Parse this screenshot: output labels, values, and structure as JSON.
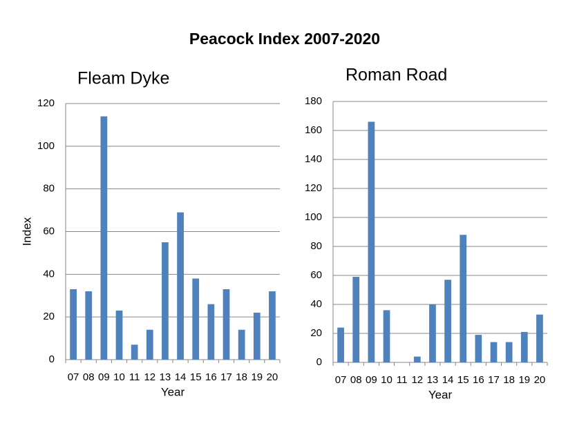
{
  "title": "Peacock Index 2007-2020",
  "chart_data": [
    {
      "type": "bar",
      "title": "Fleam Dyke",
      "x_label": "Year",
      "y_label": "Index",
      "categories": [
        "07",
        "08",
        "09",
        "10",
        "11",
        "12",
        "13",
        "14",
        "15",
        "16",
        "17",
        "18",
        "19",
        "20"
      ],
      "values": [
        33,
        32,
        114,
        23,
        7,
        14,
        55,
        69,
        38,
        26,
        33,
        14,
        22,
        32
      ],
      "color": "#4f81bd",
      "ylim": [
        0,
        120
      ],
      "yticks": [
        0,
        20,
        40,
        60,
        80,
        100,
        120
      ],
      "grid": true
    },
    {
      "type": "bar",
      "title": "Roman Road",
      "x_label": "Year",
      "categories": [
        "07",
        "08",
        "09",
        "10",
        "11",
        "12",
        "13",
        "14",
        "15",
        "16",
        "17",
        "18",
        "19",
        "20"
      ],
      "values": [
        24,
        59,
        166,
        36,
        0,
        4,
        40,
        57,
        88,
        19,
        14,
        14,
        21,
        33
      ],
      "color": "#4f81bd",
      "ylim": [
        0,
        180
      ],
      "yticks": [
        0,
        20,
        40,
        60,
        80,
        100,
        120,
        140,
        160,
        180
      ],
      "grid": true
    }
  ]
}
